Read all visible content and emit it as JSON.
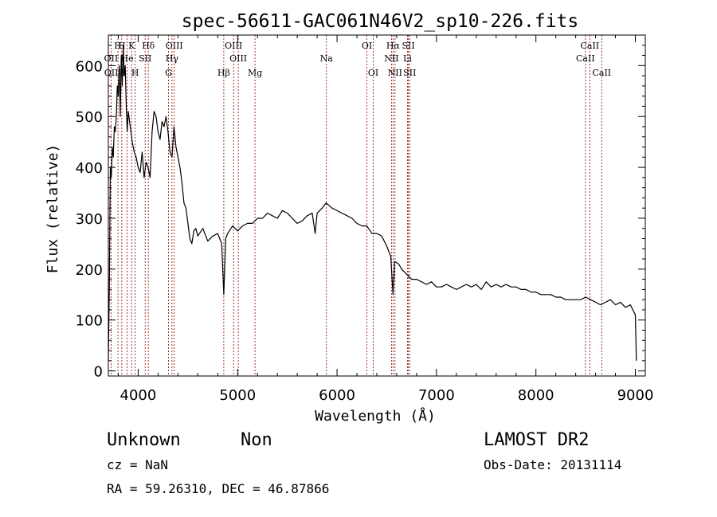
{
  "chart_data": {
    "type": "line",
    "title": "spec-56611-GAC061N46V2_sp10-226.fits",
    "xlabel": "Wavelength (Å)",
    "ylabel": "Flux (relative)",
    "xlim": [
      3700,
      9100
    ],
    "ylim": [
      -10,
      660
    ],
    "xticks": [
      4000,
      5000,
      6000,
      7000,
      8000,
      9000
    ],
    "yticks": [
      0,
      100,
      200,
      300,
      400,
      500,
      600
    ],
    "series": [
      {
        "x": [
          3700,
          3710,
          3720,
          3730,
          3740,
          3750,
          3760,
          3770,
          3780,
          3790,
          3800,
          3810,
          3820,
          3830,
          3840,
          3850,
          3860,
          3870,
          3880,
          3890,
          3900,
          3920,
          3940,
          3960,
          3980,
          4000,
          4020,
          4040,
          4060,
          4080,
          4100,
          4120,
          4140,
          4160,
          4180,
          4200,
          4220,
          4240,
          4260,
          4280,
          4300,
          4320,
          4340,
          4360,
          4380,
          4400,
          4420,
          4440,
          4460,
          4480,
          4500,
          4520,
          4540,
          4560,
          4580,
          4600,
          4650,
          4700,
          4750,
          4800,
          4840,
          4861,
          4880,
          4900,
          4950,
          5000,
          5050,
          5100,
          5150,
          5200,
          5250,
          5300,
          5350,
          5400,
          5450,
          5500,
          5550,
          5600,
          5650,
          5700,
          5750,
          5780,
          5800,
          5850,
          5890,
          5950,
          6000,
          6050,
          6100,
          6150,
          6200,
          6250,
          6300,
          6350,
          6400,
          6450,
          6500,
          6540,
          6563,
          6580,
          6620,
          6650,
          6700,
          6750,
          6800,
          6850,
          6900,
          6950,
          7000,
          7050,
          7100,
          7150,
          7200,
          7250,
          7300,
          7350,
          7400,
          7450,
          7500,
          7550,
          7600,
          7650,
          7700,
          7750,
          7800,
          7850,
          7900,
          7950,
          8000,
          8050,
          8100,
          8150,
          8200,
          8250,
          8300,
          8350,
          8400,
          8450,
          8500,
          8550,
          8600,
          8650,
          8700,
          8750,
          8800,
          8850,
          8900,
          8950,
          9000,
          9010
        ],
        "y": [
          20,
          160,
          400,
          380,
          440,
          420,
          480,
          470,
          500,
          560,
          540,
          600,
          500,
          620,
          560,
          640,
          580,
          600,
          520,
          470,
          510,
          480,
          450,
          430,
          420,
          400,
          390,
          430,
          380,
          410,
          400,
          380,
          470,
          510,
          500,
          470,
          455,
          490,
          480,
          500,
          470,
          430,
          420,
          480,
          440,
          420,
          400,
          370,
          330,
          320,
          290,
          260,
          250,
          275,
          280,
          265,
          280,
          255,
          265,
          270,
          250,
          150,
          260,
          270,
          285,
          275,
          285,
          290,
          290,
          300,
          300,
          310,
          305,
          300,
          315,
          310,
          300,
          290,
          295,
          305,
          310,
          270,
          310,
          320,
          330,
          320,
          315,
          310,
          305,
          300,
          290,
          285,
          285,
          270,
          270,
          265,
          245,
          225,
          150,
          215,
          210,
          200,
          190,
          180,
          180,
          175,
          170,
          175,
          165,
          165,
          170,
          165,
          160,
          165,
          170,
          165,
          170,
          160,
          175,
          165,
          170,
          165,
          170,
          165,
          165,
          160,
          160,
          155,
          155,
          150,
          150,
          150,
          145,
          145,
          140,
          140,
          140,
          140,
          145,
          140,
          135,
          130,
          135,
          140,
          130,
          135,
          125,
          130,
          110,
          20
        ]
      }
    ],
    "line_labels": [
      {
        "text": "H",
        "x": 3797,
        "row": 1
      },
      {
        "text": "K",
        "x": 3934,
        "row": 1
      },
      {
        "text": "Hδ",
        "x": 4102,
        "row": 1
      },
      {
        "text": "OIII",
        "x": 4363,
        "row": 1
      },
      {
        "text": "OIII",
        "x": 4959,
        "row": 1
      },
      {
        "text": "OI",
        "x": 6300,
        "row": 1
      },
      {
        "text": "Hα",
        "x": 6563,
        "row": 1
      },
      {
        "text": "SII",
        "x": 6717,
        "row": 1
      },
      {
        "text": "CaII",
        "x": 8542,
        "row": 1
      },
      {
        "text": "H",
        "x": 3835,
        "row": 1
      },
      {
        "text": "OII",
        "x": 3727,
        "row": 2
      },
      {
        "text": "He",
        "x": 3889,
        "row": 2
      },
      {
        "text": "SII",
        "x": 4070,
        "row": 2
      },
      {
        "text": "Hγ",
        "x": 4340,
        "row": 2
      },
      {
        "text": "OIII",
        "x": 5007,
        "row": 2
      },
      {
        "text": "Na",
        "x": 5893,
        "row": 2
      },
      {
        "text": "NII",
        "x": 6548,
        "row": 2
      },
      {
        "text": "Li",
        "x": 6708,
        "row": 2
      },
      {
        "text": "CaII",
        "x": 8498,
        "row": 2
      },
      {
        "text": "OII",
        "x": 3729,
        "row": 3
      },
      {
        "text": "H",
        "x": 3835,
        "row": 3
      },
      {
        "text": "H",
        "x": 3970,
        "row": 3
      },
      {
        "text": "G",
        "x": 4305,
        "row": 3
      },
      {
        "text": "Hβ",
        "x": 4861,
        "row": 3
      },
      {
        "text": "Mg",
        "x": 5175,
        "row": 3
      },
      {
        "text": "OI",
        "x": 6364,
        "row": 3
      },
      {
        "text": "NII",
        "x": 6583,
        "row": 3
      },
      {
        "text": "SII",
        "x": 6731,
        "row": 3
      },
      {
        "text": "CaII",
        "x": 8662,
        "row": 3
      }
    ],
    "line_markers": [
      3727,
      3797,
      3835,
      3889,
      3934,
      3970,
      4070,
      4102,
      4305,
      4340,
      4363,
      4861,
      4959,
      5007,
      5175,
      5893,
      6300,
      6364,
      6548,
      6563,
      6583,
      6708,
      6717,
      6731,
      8498,
      8542,
      8662
    ],
    "colors": {
      "spectrum": "#000000",
      "marker": "#8b0000"
    }
  },
  "info": {
    "class_label": "Unknown",
    "subclass_label": "Non",
    "survey": "LAMOST DR2",
    "cz": "cz = NaN",
    "obs_date": "Obs-Date: 20131114",
    "coords": "RA =  59.26310, DEC =  46.87866"
  }
}
